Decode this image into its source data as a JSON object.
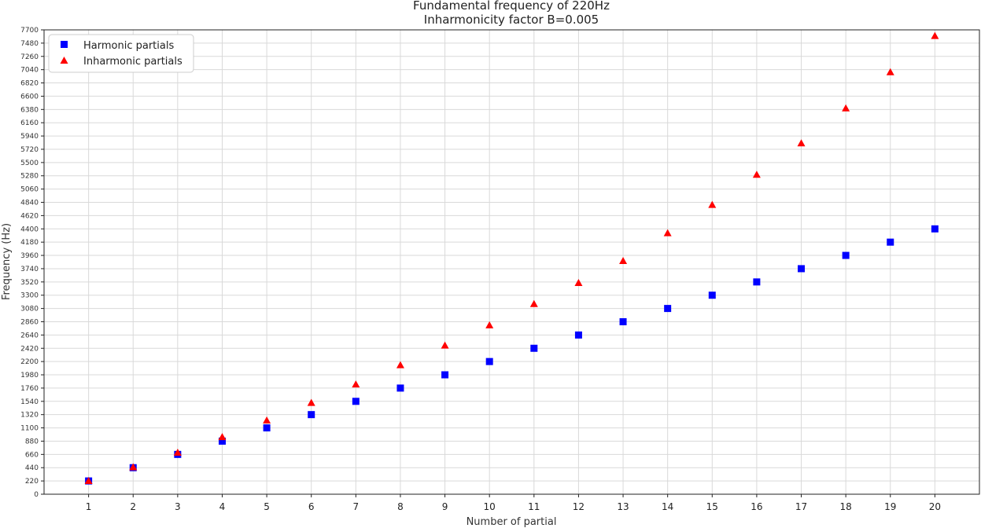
{
  "chart_data": {
    "type": "scatter",
    "title": "Fundamental frequency of 220Hz",
    "subtitle": "Inharmonicity factor B=0.005",
    "xlabel": "Number of partial",
    "ylabel": "Frequency (Hz)",
    "x": [
      1,
      2,
      3,
      4,
      5,
      6,
      7,
      8,
      9,
      10,
      11,
      12,
      13,
      14,
      15,
      16,
      17,
      18,
      19,
      20
    ],
    "xticks": [
      "1",
      "2",
      "3",
      "4",
      "5",
      "6",
      "7",
      "8",
      "9",
      "10",
      "11",
      "12",
      "13",
      "14",
      "15",
      "16",
      "17",
      "18",
      "19",
      "20"
    ],
    "yticks": [
      "0",
      "220",
      "440",
      "660",
      "880",
      "1100",
      "1320",
      "1540",
      "1760",
      "1980",
      "2200",
      "2420",
      "2640",
      "2860",
      "3080",
      "3300",
      "3520",
      "3740",
      "3960",
      "4180",
      "4400",
      "4620",
      "4840",
      "5060",
      "5280",
      "5500",
      "5720",
      "5940",
      "6160",
      "6380",
      "6600",
      "6820",
      "7040",
      "7260",
      "7480",
      "7700"
    ],
    "xlim": [
      0,
      21
    ],
    "ylim": [
      0,
      7700
    ],
    "grid": true,
    "legend_position": "top-left",
    "series": [
      {
        "name": "Harmonic partials",
        "marker": "square",
        "color": "#0000ff",
        "values": [
          220,
          440,
          660,
          880,
          1100,
          1320,
          1540,
          1760,
          1980,
          2200,
          2420,
          2640,
          2860,
          3080,
          3300,
          3520,
          3740,
          3960,
          4180,
          4400
        ]
      },
      {
        "name": "Inharmonic partials",
        "marker": "triangle",
        "color": "#ff0000",
        "values": [
          221,
          449,
          691,
          949,
          1225,
          1517,
          1823,
          2141,
          2468,
          2803,
          3156,
          3505,
          3869,
          4330,
          4800,
          5300,
          5820,
          6400,
          7000,
          7600
        ]
      }
    ]
  }
}
